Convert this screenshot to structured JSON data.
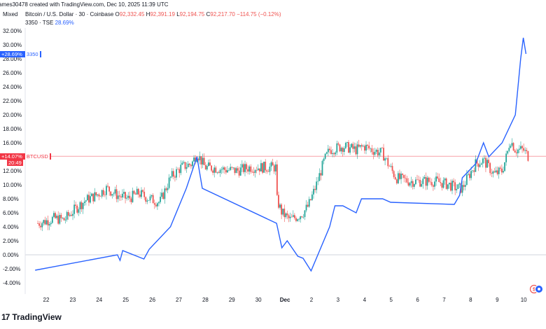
{
  "header": {
    "created": "ames30478 created with TradingView.com, Dec 10, 2025 11:39 UTC",
    "symbol": "Bitcoin / U.S. Dollar · 30 · Coinbase",
    "o_label": "O",
    "o_value": "92,332.45",
    "h_label": "H",
    "h_value": "92,391.19",
    "l_label": "L",
    "l_value": "92,194.75",
    "c_label": "C",
    "c_value": "92,217.70",
    "change": "−114.75 (−0.12%)",
    "compare_symbol": "3350 · TSE",
    "compare_value": "28.69%"
  },
  "scale_mode": "Mixed",
  "tags": {
    "tse_pct": "+28.69%",
    "tse_name": "3350",
    "btc_pct": "+14.07%",
    "btc_name": "BTCUSD",
    "btc_time": "20:49"
  },
  "footer": {
    "brand": "TradingView",
    "logo": "tv-logo-icon"
  },
  "colors": {
    "btc_up": "#26a69a",
    "btc_down": "#ef5350",
    "tse_line": "#2962ff",
    "btc_tag": "#f23645",
    "tse_tag": "#2962ff"
  },
  "chart_data": {
    "type": "line",
    "ylim": [
      -5,
      33
    ],
    "y_ticks": [
      "32.00%",
      "30.00%",
      "28.00%",
      "26.00%",
      "24.00%",
      "22.00%",
      "20.00%",
      "18.00%",
      "16.00%",
      "14.00%",
      "12.00%",
      "10.00%",
      "8.00%",
      "6.00%",
      "4.00%",
      "2.00%",
      "0.00%",
      "-2.00%",
      "-4.00%"
    ],
    "x_ticks": [
      "22",
      "23",
      "24",
      "25",
      "26",
      "27",
      "28",
      "29",
      "30",
      "Dec",
      "2",
      "3",
      "4",
      "5",
      "6",
      "7",
      "8",
      "9",
      "10"
    ],
    "x_ticks_bold": [
      "Dec"
    ],
    "series": [
      {
        "name": "BTCUSD",
        "style": "candles",
        "points": [
          [
            21.9,
            0
          ],
          [
            22.0,
            4.5
          ],
          [
            22.3,
            4.8
          ],
          [
            22.6,
            5.2
          ],
          [
            23.0,
            5.0
          ],
          [
            23.4,
            6.5
          ],
          [
            23.8,
            7.8
          ],
          [
            24.2,
            8.5
          ],
          [
            24.6,
            9.5
          ],
          [
            25.0,
            8.5
          ],
          [
            25.4,
            8.0
          ],
          [
            25.8,
            8.8
          ],
          [
            26.2,
            8.0
          ],
          [
            26.6,
            7.5
          ],
          [
            27.0,
            11.0
          ],
          [
            27.4,
            12.5
          ],
          [
            27.8,
            13.0
          ],
          [
            28.0,
            14.5
          ],
          [
            28.3,
            12.5
          ],
          [
            28.7,
            12.4
          ],
          [
            29.0,
            12.2
          ],
          [
            29.5,
            12.0
          ],
          [
            30.0,
            12.5
          ],
          [
            30.5,
            12.5
          ],
          [
            31.0,
            12.5
          ],
          [
            31.0,
            8.0
          ],
          [
            31.2,
            6.0
          ],
          [
            31.5,
            5.0
          ],
          [
            31.8,
            5.5
          ],
          [
            32.0,
            6.0
          ],
          [
            32.2,
            7.0
          ],
          [
            32.5,
            10.0
          ],
          [
            32.8,
            13.5
          ],
          [
            33.0,
            15.0
          ],
          [
            33.5,
            15.5
          ],
          [
            34.0,
            15.0
          ],
          [
            34.3,
            15.5
          ],
          [
            34.6,
            15.0
          ],
          [
            35.0,
            14.5
          ],
          [
            35.2,
            13.0
          ],
          [
            35.5,
            11.0
          ],
          [
            36.0,
            10.5
          ],
          [
            36.5,
            10.5
          ],
          [
            37.0,
            10.5
          ],
          [
            37.5,
            10.0
          ],
          [
            37.8,
            9.5
          ],
          [
            38.0,
            9.5
          ],
          [
            38.2,
            11.0
          ],
          [
            38.5,
            13.0
          ],
          [
            38.8,
            13.5
          ],
          [
            39.0,
            12.5
          ],
          [
            39.2,
            11.5
          ],
          [
            39.5,
            12.0
          ],
          [
            39.7,
            14.5
          ],
          [
            39.8,
            16.5
          ],
          [
            40.0,
            15.0
          ],
          [
            40.3,
            15.0
          ],
          [
            40.5,
            14.0
          ]
        ]
      },
      {
        "name": "3350",
        "style": "line",
        "points": [
          [
            21.9,
            -2.2
          ],
          [
            25.0,
            0.0
          ],
          [
            25.1,
            -0.8
          ],
          [
            25.2,
            0.6
          ],
          [
            26.0,
            -0.6
          ],
          [
            26.2,
            0.8
          ],
          [
            27.0,
            4.0
          ],
          [
            27.6,
            9.5
          ],
          [
            28.0,
            14.0
          ],
          [
            28.2,
            9.5
          ],
          [
            31.0,
            4.5
          ],
          [
            31.2,
            1.0
          ],
          [
            31.4,
            2.0
          ],
          [
            31.8,
            -0.2
          ],
          [
            32.0,
            -0.5
          ],
          [
            32.3,
            -2.3
          ],
          [
            33.0,
            4.0
          ],
          [
            33.2,
            7.0
          ],
          [
            33.5,
            7.0
          ],
          [
            34.0,
            6.0
          ],
          [
            34.2,
            8.0
          ],
          [
            34.5,
            8.0
          ],
          [
            35.0,
            8.0
          ],
          [
            35.3,
            7.5
          ],
          [
            37.7,
            7.2
          ],
          [
            37.9,
            8.5
          ],
          [
            38.0,
            11.0
          ],
          [
            38.5,
            13.0
          ],
          [
            38.8,
            16.0
          ],
          [
            39.0,
            14.0
          ],
          [
            39.5,
            16.0
          ],
          [
            40.0,
            20.0
          ],
          [
            40.2,
            28.0
          ],
          [
            40.3,
            31.0
          ],
          [
            40.4,
            28.7
          ]
        ]
      }
    ],
    "hline": 14.07
  }
}
